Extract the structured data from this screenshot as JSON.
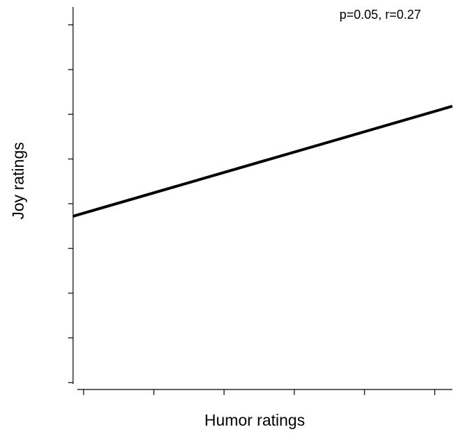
{
  "chart_data": {
    "type": "line",
    "annotation": "p=0.05, r=0.27",
    "xlabel": "Humor ratings",
    "ylabel": "Joy ratings",
    "x": [
      0.85,
      6.25
    ],
    "series": [
      {
        "color": "#000000",
        "values": [
          4.72,
          7.18
        ]
      }
    ],
    "xlim": [
      0.85,
      6.25
    ],
    "xticks": [
      1,
      2,
      3,
      4,
      5,
      6
    ],
    "ylim": [
      0.97,
      9.4
    ],
    "yticks": [
      1,
      2,
      3,
      4,
      5,
      6,
      7,
      8,
      9
    ],
    "grid": false
  }
}
